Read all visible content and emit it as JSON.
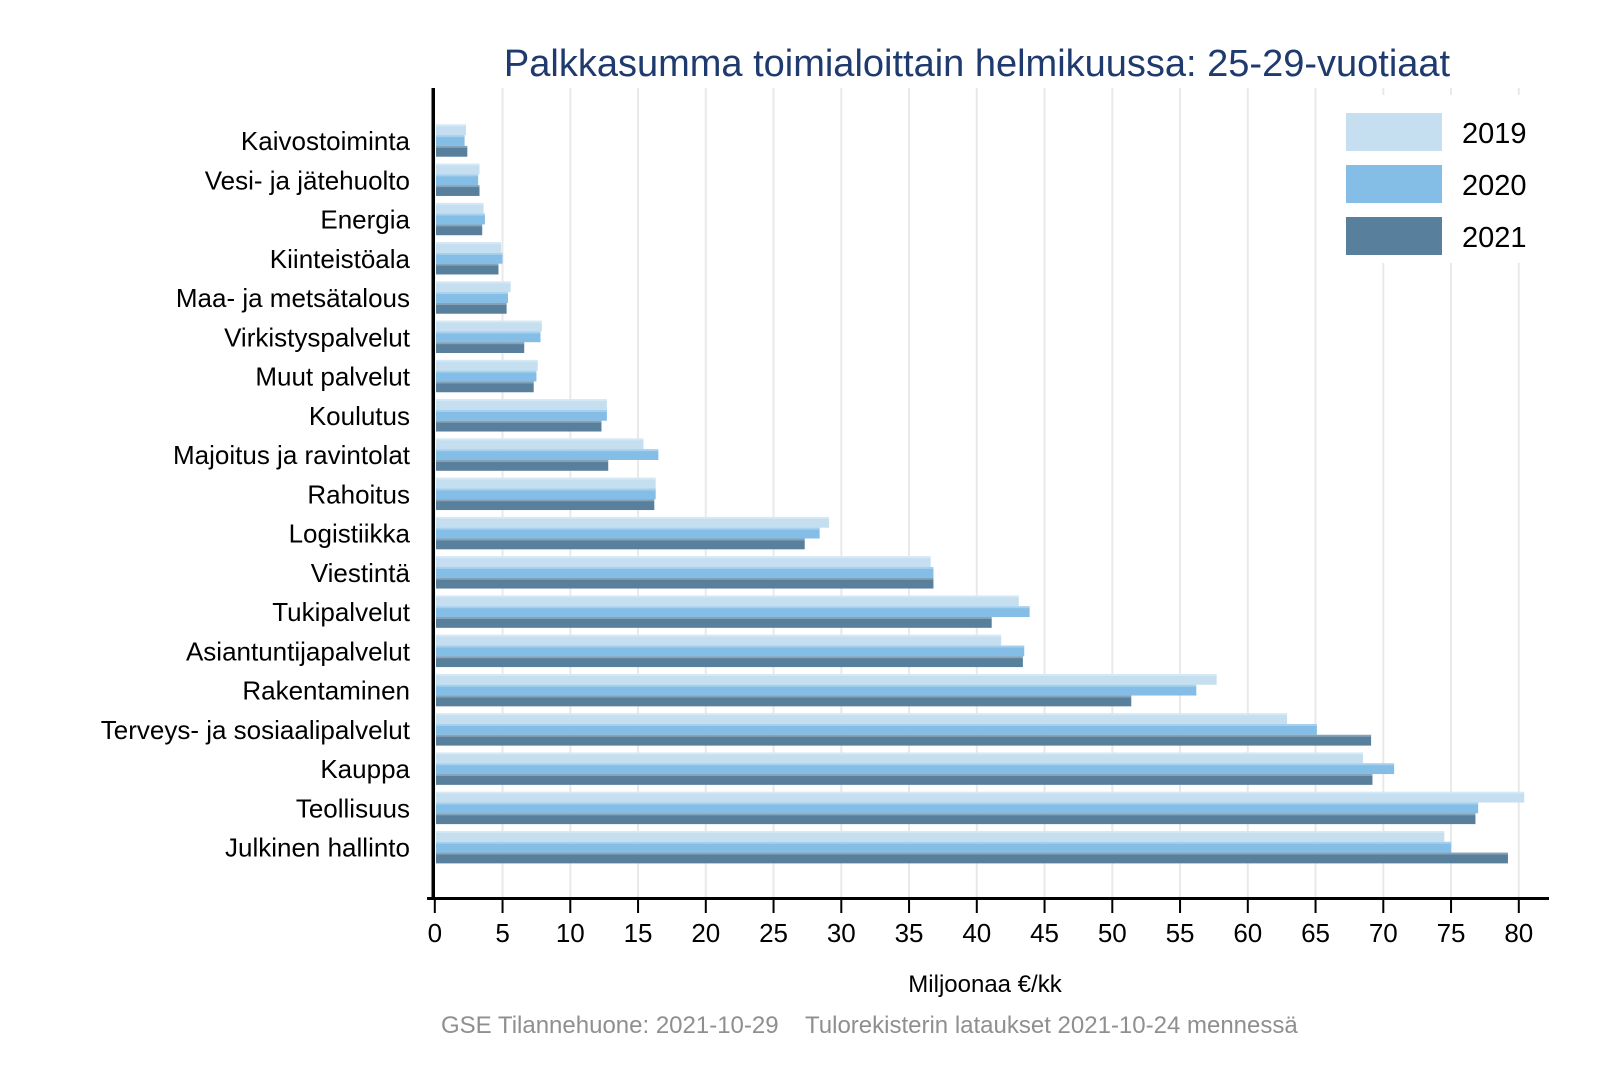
{
  "title": "Palkkasumma toimialoittain helmikuussa: 25-29-vuotiaat",
  "footer": {
    "left": "GSE Tilannehuone: 2021-10-29",
    "right": "Tulorekisterin lataukset 2021-10-24 mennessä"
  },
  "colors": {
    "title": "#1f3a6e",
    "axis": "#000000",
    "grid": "#e9e9e9",
    "text": "#000000",
    "footer": "#8f8f8f",
    "series_2019": "#c5dff1",
    "series_2020": "#84bee6",
    "series_2021": "#587f9c",
    "background": "#ffffff"
  },
  "chart_data": {
    "type": "bar",
    "orientation": "horizontal",
    "title": "Palkkasumma toimialoittain helmikuussa: 25-29-vuotiaat",
    "xlabel": "Miljoonaa €/kk",
    "ylabel": "",
    "xlim": [
      0,
      81
    ],
    "xticks": [
      0,
      5,
      10,
      15,
      20,
      25,
      30,
      35,
      40,
      45,
      50,
      55,
      60,
      65,
      70,
      75,
      80
    ],
    "grid": true,
    "legend_position": "top-right",
    "categories": [
      "Kaivostoiminta",
      "Vesi- ja jätehuolto",
      "Energia",
      "Kiinteistöala",
      "Maa- ja metsätalous",
      "Virkistyspalvelut",
      "Muut palvelut",
      "Koulutus",
      "Majoitus ja ravintolat",
      "Rahoitus",
      "Logistiikka",
      "Viestintä",
      "Tukipalvelut",
      "Asiantuntijapalvelut",
      "Rakentaminen",
      "Terveys- ja sosiaalipalvelut",
      "Kauppa",
      "Teollisuus",
      "Julkinen hallinto"
    ],
    "series": [
      {
        "name": "2019",
        "color": "#c5dff1",
        "values": [
          2.3,
          3.3,
          3.6,
          4.9,
          5.6,
          7.9,
          7.6,
          12.7,
          15.4,
          16.3,
          29.1,
          36.6,
          43.1,
          41.8,
          57.7,
          62.9,
          68.5,
          80.4,
          74.5
        ]
      },
      {
        "name": "2020",
        "color": "#84bee6",
        "values": [
          2.2,
          3.2,
          3.7,
          5.0,
          5.4,
          7.8,
          7.5,
          12.7,
          16.5,
          16.3,
          28.4,
          36.8,
          43.9,
          43.5,
          56.2,
          65.1,
          70.8,
          77.0,
          75.0
        ]
      },
      {
        "name": "2021",
        "color": "#587f9c",
        "values": [
          2.4,
          3.3,
          3.5,
          4.7,
          5.3,
          6.6,
          7.3,
          12.3,
          12.8,
          16.2,
          27.3,
          36.8,
          41.1,
          43.4,
          51.4,
          69.1,
          69.2,
          76.8,
          79.2
        ]
      }
    ]
  }
}
